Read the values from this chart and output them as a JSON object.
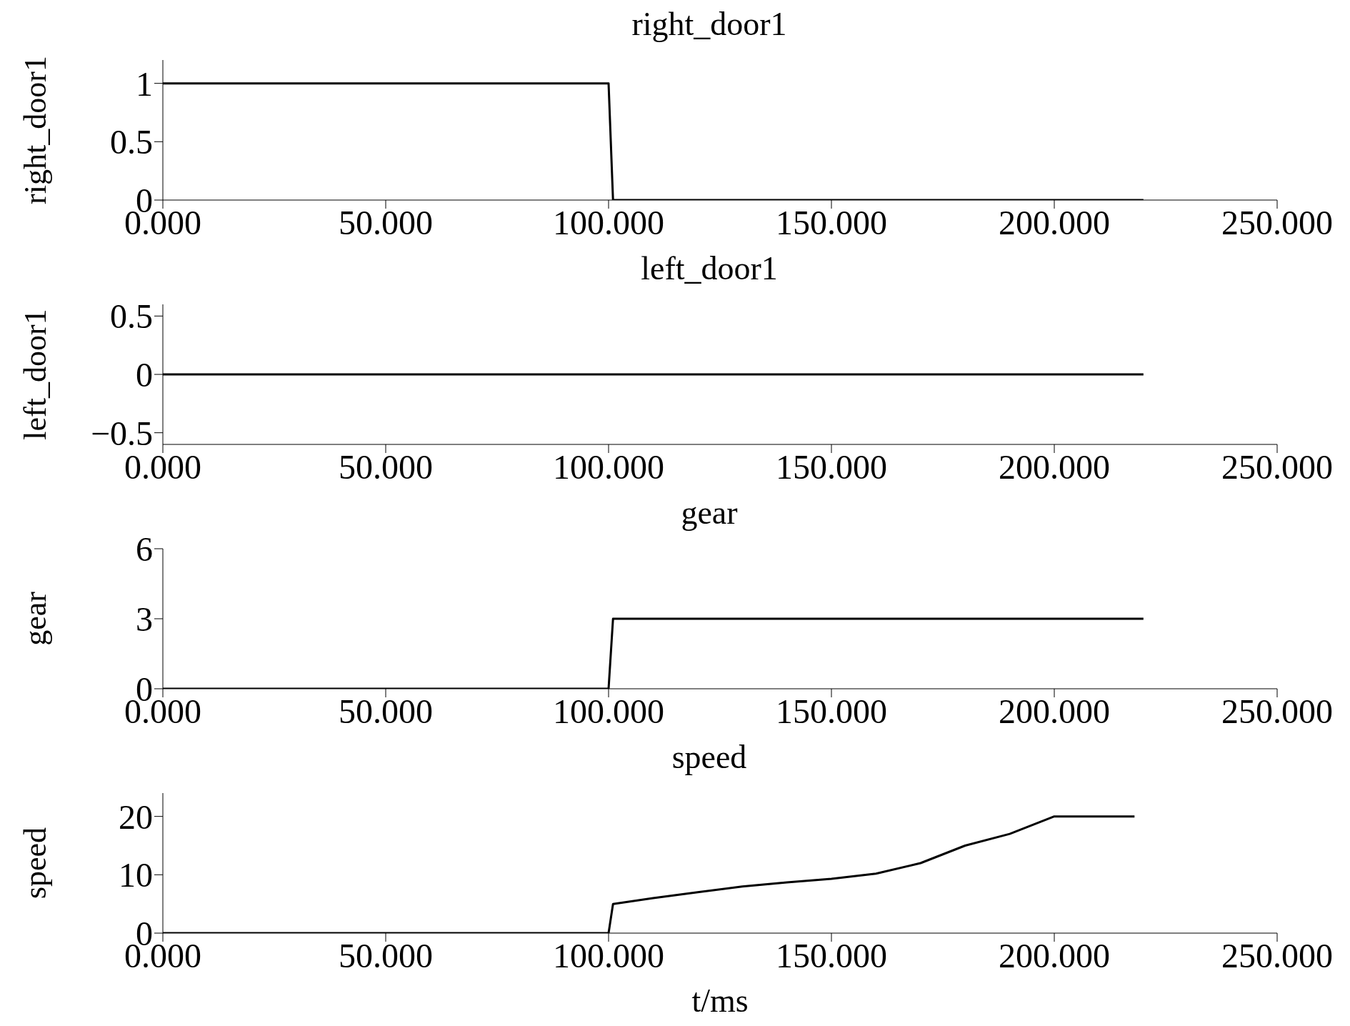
{
  "chart_data": [
    {
      "type": "line",
      "title": "right_door1",
      "ylabel": "right_door1",
      "x": [
        0,
        100,
        101,
        220
      ],
      "values": [
        1,
        1,
        0,
        0
      ],
      "color": "#000000",
      "xlim": [
        0,
        250
      ],
      "xticks": [
        {
          "value": 0,
          "label": "0.000"
        },
        {
          "value": 50,
          "label": "50.000"
        },
        {
          "value": 100,
          "label": "100.000"
        },
        {
          "value": 150,
          "label": "150.000"
        },
        {
          "value": 200,
          "label": "200.000"
        },
        {
          "value": 250,
          "label": "250.000"
        }
      ],
      "ylim": [
        0,
        1.2
      ],
      "yticks": [
        0,
        0.5,
        1
      ]
    },
    {
      "type": "line",
      "title": "left_door1",
      "ylabel": "left_door1",
      "x": [
        0,
        220
      ],
      "values": [
        0,
        0
      ],
      "color": "#000000",
      "xlim": [
        0,
        250
      ],
      "xticks": [
        {
          "value": 0,
          "label": "0.000"
        },
        {
          "value": 50,
          "label": "50.000"
        },
        {
          "value": 100,
          "label": "100.000"
        },
        {
          "value": 150,
          "label": "150.000"
        },
        {
          "value": 200,
          "label": "200.000"
        },
        {
          "value": 250,
          "label": "250.000"
        }
      ],
      "ylim": [
        -0.6,
        0.6
      ],
      "yticks": [
        {
          "value": -0.5,
          "label": "−0.5"
        },
        0,
        0.5
      ]
    },
    {
      "type": "line",
      "title": "gear",
      "ylabel": "gear",
      "x": [
        0,
        100,
        101,
        220
      ],
      "values": [
        0,
        0,
        3,
        3
      ],
      "color": "#000000",
      "xlim": [
        0,
        250
      ],
      "xticks": [
        {
          "value": 0,
          "label": "0.000"
        },
        {
          "value": 50,
          "label": "50.000"
        },
        {
          "value": 100,
          "label": "100.000"
        },
        {
          "value": 150,
          "label": "150.000"
        },
        {
          "value": 200,
          "label": "200.000"
        },
        {
          "value": 250,
          "label": "250.000"
        }
      ],
      "ylim": [
        0,
        6
      ],
      "yticks": [
        0,
        3,
        6
      ]
    },
    {
      "type": "line",
      "title": "speed",
      "ylabel": "speed",
      "xlabel": "t/ms",
      "x": [
        0,
        100,
        101,
        110,
        120,
        130,
        140,
        150,
        160,
        170,
        180,
        190,
        200,
        218
      ],
      "values": [
        0,
        0,
        5,
        6,
        7,
        8,
        8.7,
        9.3,
        10.2,
        12,
        15,
        17,
        20,
        20
      ],
      "color": "#000000",
      "xlim": [
        0,
        250
      ],
      "xticks": [
        {
          "value": 0,
          "label": "0.000"
        },
        {
          "value": 50,
          "label": "50.000"
        },
        {
          "value": 100,
          "label": "100.000"
        },
        {
          "value": 150,
          "label": "150.000"
        },
        {
          "value": 200,
          "label": "200.000"
        },
        {
          "value": 250,
          "label": "250.000"
        }
      ],
      "ylim": [
        0,
        24
      ],
      "yticks": [
        0,
        10,
        20
      ]
    }
  ]
}
